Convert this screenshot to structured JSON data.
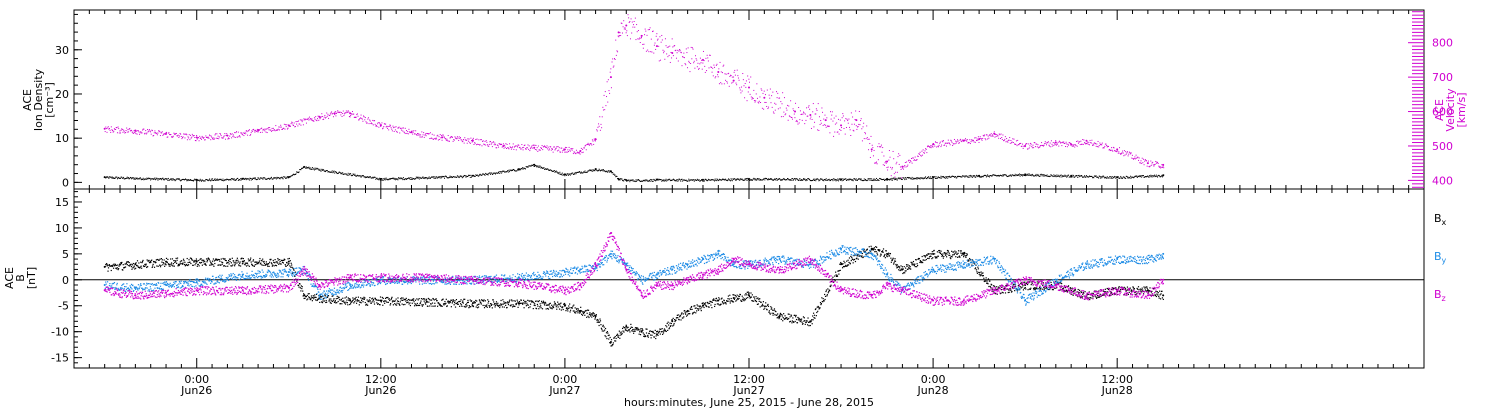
{
  "chart_data": [
    {
      "type": "scatter",
      "panel": "plasma",
      "left_axis": {
        "label_lines": [
          "ACE",
          "Ion Density",
          "[cm⁻³]"
        ],
        "ticks": [
          0,
          10,
          20,
          30
        ],
        "ylim": [
          -1.5,
          39
        ]
      },
      "right_axis": {
        "label_lines": [
          "ACE",
          "Velocity",
          "[km/s]"
        ],
        "ticks": [
          400,
          500,
          600,
          700,
          800
        ],
        "ylim": [
          375,
          895
        ],
        "color": "#d000d0"
      },
      "series": [
        {
          "axis": "left",
          "color": "#000000",
          "x_hours": [
            -6,
            0,
            3,
            6,
            7,
            12,
            18,
            21,
            22,
            24,
            26,
            27,
            27.5,
            28,
            30,
            33,
            36,
            42,
            45,
            48,
            51,
            54,
            57,
            60,
            63
          ],
          "values": [
            1.2,
            0.6,
            0.8,
            1.2,
            3.5,
            0.8,
            1.5,
            3.0,
            4.0,
            1.8,
            3.0,
            2.5,
            0.8,
            0.5,
            0.6,
            0.6,
            0.8,
            0.7,
            0.8,
            1.2,
            1.5,
            1.8,
            1.5,
            1.2,
            1.6
          ]
        },
        {
          "axis": "right",
          "color": "#d000d0",
          "x_hours": [
            -6,
            -4,
            -2,
            0,
            2,
            4,
            6,
            8,
            9,
            10,
            12,
            14,
            16,
            18,
            20,
            22,
            24,
            25,
            26,
            27,
            27.5,
            28,
            29,
            30,
            31,
            33,
            34,
            35,
            36,
            37,
            39,
            40,
            41,
            42,
            43,
            44,
            45,
            46,
            48,
            50,
            51,
            52,
            54,
            56,
            57,
            58,
            60,
            62,
            63
          ],
          "values": [
            550,
            545,
            535,
            525,
            530,
            545,
            560,
            585,
            595,
            595,
            560,
            540,
            525,
            515,
            500,
            495,
            490,
            485,
            520,
            700,
            830,
            850,
            820,
            790,
            770,
            750,
            715,
            690,
            670,
            640,
            600,
            590,
            575,
            560,
            575,
            490,
            455,
            440,
            505,
            515,
            520,
            535,
            500,
            510,
            505,
            515,
            490,
            450,
            445
          ]
        }
      ]
    },
    {
      "type": "line",
      "panel": "magnetic",
      "left_axis": {
        "label_lines": [
          "ACE",
          "B",
          "[nT]"
        ],
        "ticks": [
          -15,
          -10,
          -5,
          0,
          5,
          10,
          15
        ],
        "ylim": [
          -17,
          17.5
        ]
      },
      "zero_line": true,
      "legend": [
        {
          "name": "B",
          "sub": "x",
          "color": "#000000"
        },
        {
          "name": "B",
          "sub": "y",
          "color": "#1e8ce6"
        },
        {
          "name": "B",
          "sub": "z",
          "color": "#d000d0"
        }
      ],
      "series": [
        {
          "name": "Bx",
          "color": "#000000",
          "x_hours": [
            -6,
            -4,
            -2,
            0,
            3,
            6,
            7,
            8,
            10,
            12,
            15,
            18,
            21,
            24,
            25,
            26,
            27,
            28,
            29,
            30,
            31,
            32,
            33,
            34,
            35,
            36,
            38,
            40,
            42,
            44,
            45,
            46,
            48,
            50,
            52,
            54,
            56,
            58,
            60,
            62,
            63
          ],
          "values": [
            2.5,
            3.0,
            3.5,
            3.5,
            3.5,
            3.5,
            -3.0,
            -3.5,
            -4.0,
            -4.0,
            -4.2,
            -4.5,
            -4.5,
            -5.0,
            -6.0,
            -7.0,
            -12.0,
            -9.0,
            -10.0,
            -10.5,
            -8.0,
            -6.0,
            -5.0,
            -4.0,
            -3.5,
            -3.0,
            -7.0,
            -8.0,
            3.0,
            6.0,
            5.0,
            2.0,
            5.0,
            5.0,
            -2.0,
            -1.0,
            -1.0,
            -3.0,
            -2.0,
            -2.0,
            -3.0
          ]
        },
        {
          "name": "By",
          "color": "#1e8ce6",
          "x_hours": [
            -6,
            -4,
            -2,
            0,
            3,
            6,
            7,
            8,
            10,
            12,
            15,
            18,
            21,
            24,
            25,
            26,
            27,
            28,
            29,
            30,
            31,
            32,
            33,
            34,
            35,
            36,
            38,
            40,
            42,
            44,
            45,
            46,
            48,
            50,
            52,
            54,
            56,
            58,
            60,
            62,
            63
          ],
          "values": [
            -1.0,
            -1.5,
            -1.0,
            -0.5,
            1.0,
            1.5,
            2.0,
            -3.0,
            -1.0,
            0.0,
            0.0,
            0.0,
            0.5,
            1.5,
            2.0,
            2.5,
            5.0,
            3.0,
            0.0,
            1.0,
            2.0,
            3.0,
            4.0,
            5.0,
            3.0,
            3.0,
            4.0,
            3.0,
            6.0,
            5.0,
            1.0,
            -2.0,
            2.0,
            3.0,
            4.0,
            -4.0,
            0.0,
            3.0,
            4.0,
            4.0,
            5.0
          ]
        },
        {
          "name": "Bz",
          "color": "#d000d0",
          "x_hours": [
            -6,
            -4,
            -2,
            0,
            3,
            6,
            7,
            8,
            10,
            12,
            15,
            18,
            21,
            24,
            25,
            26,
            27,
            28,
            29,
            30,
            31,
            32,
            33,
            34,
            35,
            36,
            38,
            40,
            42,
            44,
            45,
            46,
            48,
            50,
            52,
            54,
            56,
            58,
            60,
            62,
            63
          ],
          "values": [
            -2.0,
            -3.0,
            -2.5,
            -2.0,
            -2.0,
            -1.5,
            2.0,
            -1.0,
            0.5,
            0.5,
            0.5,
            0.0,
            -0.5,
            -2.0,
            -1.0,
            3.0,
            9.0,
            2.0,
            -3.0,
            -1.0,
            -1.0,
            0.0,
            1.0,
            2.0,
            4.0,
            3.0,
            2.0,
            4.0,
            -2.0,
            -3.0,
            -1.0,
            -2.0,
            -4.0,
            -4.0,
            -2.0,
            0.0,
            -1.0,
            -3.0,
            -2.0,
            -3.0,
            0.0
          ]
        }
      ]
    }
  ],
  "x_axis": {
    "xlim_hours": [
      -8,
      80
    ],
    "major_ticks": [
      {
        "h": 0,
        "time": "0:00",
        "date": "Jun26"
      },
      {
        "h": 12,
        "time": "12:00",
        "date": "Jun26"
      },
      {
        "h": 24,
        "time": "0:00",
        "date": "Jun27"
      },
      {
        "h": 36,
        "time": "12:00",
        "date": "Jun27"
      },
      {
        "h": 48,
        "time": "0:00",
        "date": "Jun28"
      },
      {
        "h": 60,
        "time": "12:00",
        "date": "Jun28"
      }
    ],
    "minor_step_hours": 1,
    "label": "hours:minutes, June 25, 2015 - June 28, 2015"
  }
}
